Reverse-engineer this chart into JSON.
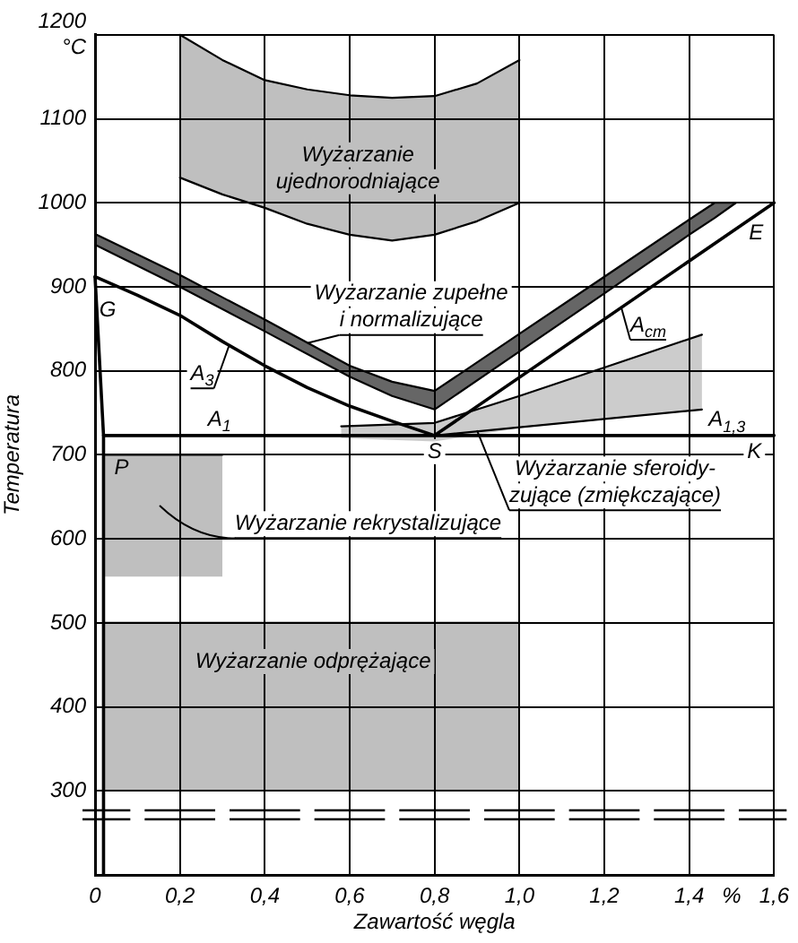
{
  "chart_data": {
    "type": "line",
    "xlabel": "Zawartość węgla",
    "ylabel": "Temperatura",
    "xlim": [
      0,
      1.6
    ],
    "ylim": [
      200,
      1200
    ],
    "xticks": [
      0,
      {
        "value": 0.2,
        "label": "0,2"
      },
      {
        "value": 0.4,
        "label": "0,4"
      },
      {
        "value": 0.6,
        "label": "0,6"
      },
      {
        "value": 0.8,
        "label": "0,8"
      },
      {
        "value": 1.0,
        "label": "1,0"
      },
      {
        "value": 1.2,
        "label": "1,2"
      },
      {
        "value": 1.4,
        "label": "1,4"
      },
      {
        "value": 1.5,
        "label": "%"
      },
      {
        "value": 1.6,
        "label": "1,6"
      }
    ],
    "yticks": [
      300,
      400,
      500,
      600,
      700,
      800,
      900,
      1000,
      1100,
      {
        "value": 1200,
        "label": "1200\n°C"
      }
    ],
    "grid": true,
    "marker": "none",
    "series": [
      {
        "type": "line",
        "color": "#000000",
        "x": [
          0.2,
          0.3,
          0.4,
          0.5,
          0.6,
          0.7,
          0.8,
          0.9,
          1.0
        ],
        "values": [
          1200,
          1170,
          1146,
          1135,
          1128,
          1125,
          1127,
          1142,
          1170
        ],
        "upper": [
          1200,
          1170,
          1146,
          1135,
          1128,
          1125,
          1127,
          1142,
          1170
        ],
        "lower": [
          1030,
          1010,
          994,
          975,
          962,
          955,
          962,
          978,
          1000
        ]
      },
      {
        "type": "line",
        "color": "#000000",
        "x": [
          0.58,
          0.8,
          1.0,
          1.2,
          1.43
        ],
        "values": [
          734,
          738,
          770,
          804,
          843
        ],
        "upper": [
          734,
          738,
          770,
          804,
          843
        ],
        "lower": [
          720,
          716,
          732,
          742,
          754
        ]
      },
      {
        "type": "line",
        "color": "#000000",
        "x": [
          0,
          0.2,
          0.4,
          0.6,
          0.7,
          0.8,
          1.0,
          1.2,
          1.4,
          1.46,
          1.51
        ],
        "values": [
          963,
          914,
          861,
          806,
          787,
          776,
          844,
          912,
          980,
          1000,
          1000
        ],
        "upper": [
          963,
          914,
          861,
          806,
          787,
          776,
          844,
          912,
          980,
          1000,
          1000
        ],
        "lower": [
          950,
          900,
          847,
          793,
          770,
          754,
          823,
          892,
          962,
          982,
          1000
        ]
      },
      {
        "type": "line",
        "color": "#000000",
        "x": [
          0.02,
          0.3
        ],
        "values": [
          700,
          700
        ],
        "upper": [
          700,
          700
        ],
        "lower": [
          555,
          555
        ]
      },
      {
        "type": "line",
        "color": "#000000",
        "x": [
          0.02,
          1.0
        ],
        "values": [
          500,
          500
        ],
        "upper": [
          500,
          500
        ],
        "lower": [
          300,
          300
        ]
      },
      {
        "type": "line",
        "name": "A$_{3}$",
        "color": "#000000",
        "x": [
          0,
          0.1,
          0.2,
          0.3,
          0.4,
          0.5,
          0.6,
          0.7,
          0.8
        ],
        "values": [
          912,
          890,
          866,
          835,
          806,
          780,
          758,
          740,
          723
        ]
      },
      {
        "type": "line",
        "name": "A$_{cm}$",
        "color": "#000000",
        "x": [
          0.8,
          1.6
        ],
        "values": [
          723,
          1000
        ]
      },
      {
        "type": "line",
        "name": "A$_{1}$",
        "color": "#000000",
        "x": [
          0.02,
          1.6
        ],
        "values": [
          723,
          723
        ]
      },
      {
        "type": "line",
        "name": "A$_{1,3}$",
        "color": "#000000",
        "x": [
          0.8,
          1.43
        ],
        "values": [
          723,
          754
        ]
      },
      {
        "type": "line",
        "color": "#000000",
        "x": [
          0,
          0.02,
          0.02
        ],
        "values": [
          912,
          723,
          200
        ]
      },
      {
        "type": "line",
        "color": "#000000",
        "x": [
          0.2,
          0.3,
          0.4,
          0.5,
          0.6,
          0.7,
          0.8,
          0.9,
          1.0
        ],
        "values": [
          1030,
          1010,
          994,
          975,
          962,
          955,
          962,
          978,
          1000
        ]
      },
      {
        "type": "line",
        "color": "#000000",
        "x": [
          0,
          0.2,
          0.4,
          0.6,
          0.7,
          0.8,
          1.0,
          1.2,
          1.4,
          1.46,
          1.51
        ],
        "values": [
          950,
          900,
          847,
          793,
          770,
          754,
          823,
          892,
          962,
          982,
          1000
        ]
      }
    ],
    "annotations": [
      "Wyżarzanie\nujednorodniające",
      {
        "text": "Wyżarzanie zupełne\ni normalizujące",
        "x": 0.5,
        "y": 833
      },
      "Wyżarzanie rekrystalizujące",
      "Wyżarzanie odprężające",
      {
        "text": "Wyżarzanie sferoidy-\nzujące (zmiękczające)",
        "x": 0.9,
        "y": 729
      },
      {
        "text": "G",
        "x": 0,
        "y": 912
      },
      {
        "text": "P",
        "x": 0.02,
        "y": 723
      },
      {
        "text": "S",
        "x": 0.8,
        "y": 723
      },
      {
        "text": "E",
        "x": 1.6,
        "y": 1000
      },
      {
        "text": "K",
        "x": 1.6,
        "y": 723
      }
    ]
  }
}
